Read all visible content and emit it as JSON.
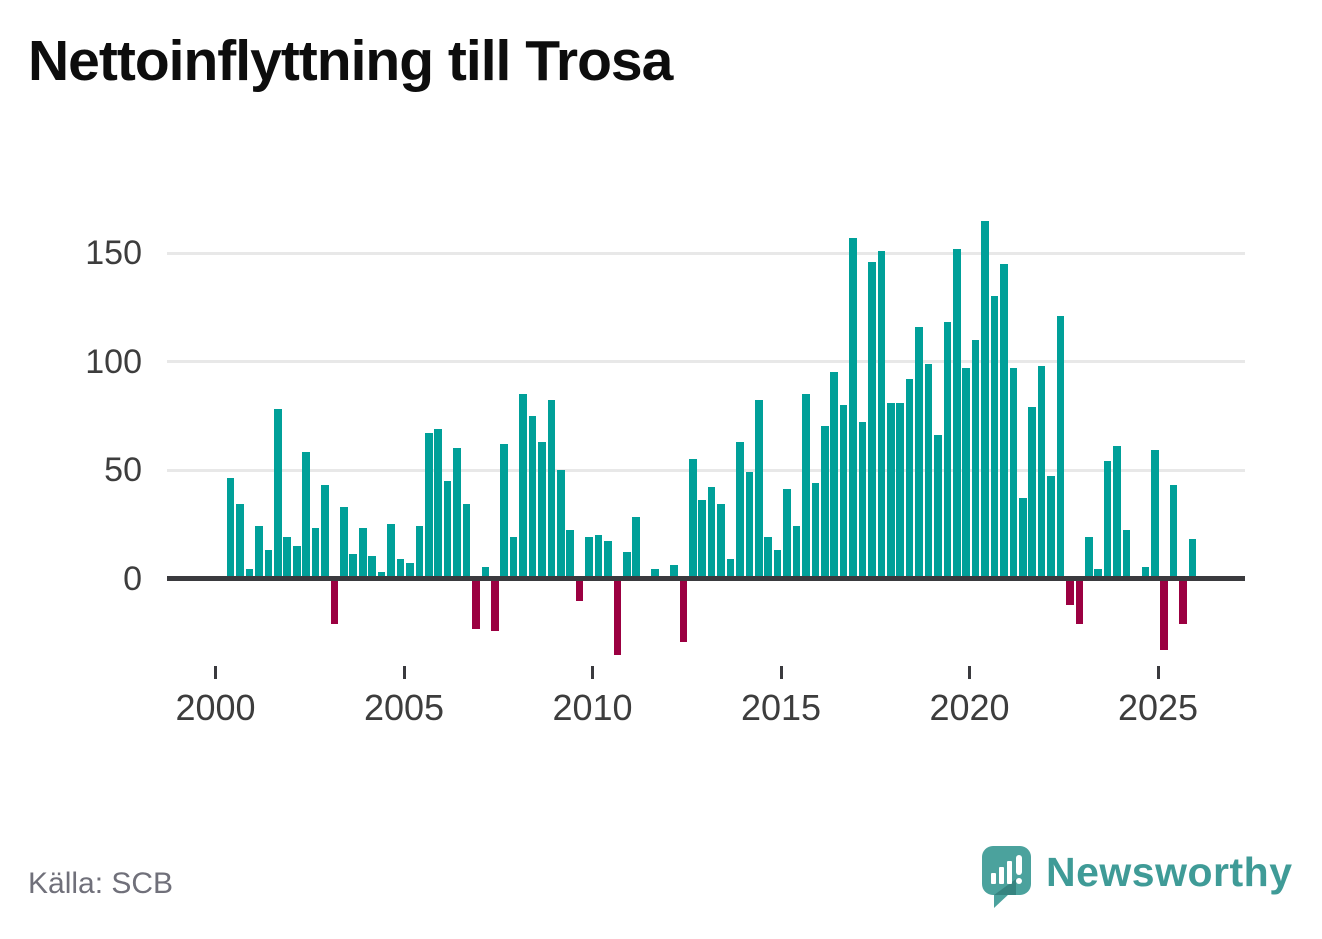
{
  "title": "Nettoinflyttning till Trosa",
  "source": "Källa: SCB",
  "branding": {
    "wordmark": "Newsworthy",
    "logo_icon": "speech-bubble-bar-chart-icon"
  },
  "colors": {
    "positive_bar": "#00a099",
    "negative_bar": "#9b0041",
    "axis": "#3a3a3e",
    "grid": "#e8e8e8",
    "tick_text": "#3d3d3d",
    "muted_text": "#70707a",
    "brand_teal": "#3f9b97",
    "title_text": "#0d0d0d",
    "background": "#ffffff"
  },
  "chart_data": {
    "type": "bar",
    "title": "Nettoinflyttning till Trosa",
    "freq": "quarterly",
    "start_period": "2000Q1",
    "end_period": "2025Q3",
    "x_tick_years": [
      2000,
      2005,
      2010,
      2015,
      2020,
      2025
    ],
    "y_ticks": [
      0,
      50,
      100,
      150
    ],
    "ylim": [
      -40,
      170
    ],
    "grid": "horizontal",
    "legend": "none",
    "series": [
      {
        "name": "Nettoinflyttning",
        "values": [
          45,
          33,
          3,
          23,
          12,
          77,
          18,
          14,
          57,
          22,
          42,
          -20,
          32,
          10,
          22,
          9,
          2,
          24,
          8,
          6,
          23,
          66,
          68,
          44,
          59,
          33,
          -22,
          4,
          -23,
          61,
          18,
          84,
          74,
          62,
          81,
          49,
          21,
          -9,
          18,
          19,
          16,
          -34,
          11,
          27,
          0,
          3,
          0,
          5,
          -28,
          54,
          35,
          41,
          33,
          8,
          62,
          48,
          81,
          18,
          12,
          40,
          23,
          84,
          43,
          69,
          94,
          79,
          156,
          71,
          145,
          150,
          80,
          80,
          91,
          115,
          98,
          65,
          117,
          151,
          96,
          109,
          164,
          129,
          144,
          96,
          36,
          78,
          97,
          46,
          120,
          -11,
          -20,
          18,
          3,
          53,
          60,
          21,
          0,
          4,
          58,
          -32,
          42,
          -20,
          17
        ]
      }
    ]
  }
}
